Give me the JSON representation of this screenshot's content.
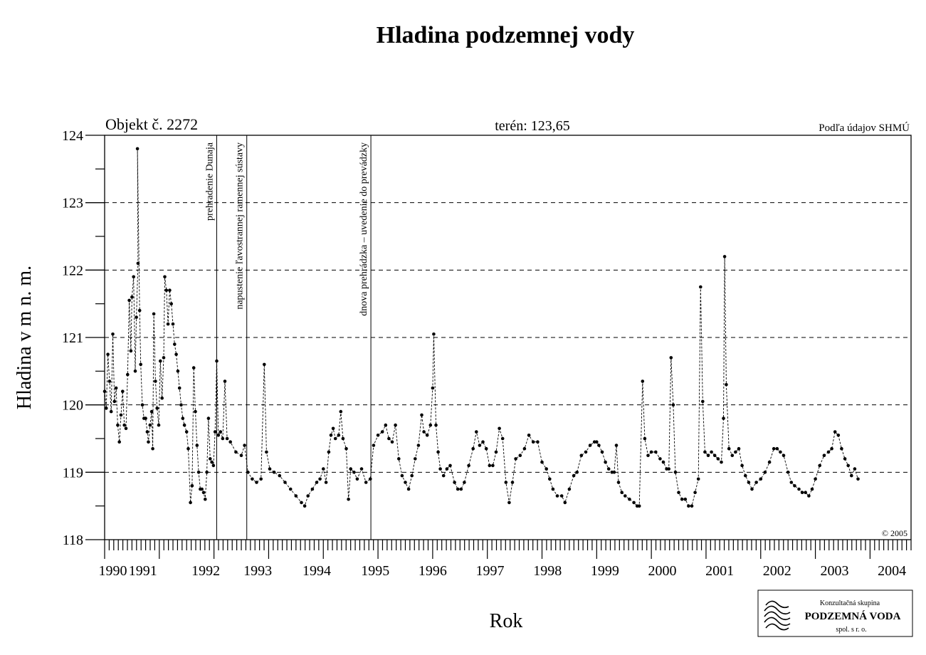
{
  "chart_data": {
    "type": "line",
    "title": "Hladina podzemnej vody",
    "object_label": "Objekt č. 2272",
    "terrain_label": "terén: 123,65",
    "source_label": "Podľa údajov SHMÚ",
    "copyright": "© 2005",
    "xlabel": "Rok",
    "ylabel": "Hladina v m n. m.",
    "xlim": [
      1990.0,
      2004.75
    ],
    "ylim": [
      118,
      124
    ],
    "y_ticks": [
      118,
      119,
      120,
      121,
      122,
      123,
      124
    ],
    "x_tick_labels": [
      {
        "label": "1990",
        "x": 1990.15
      },
      {
        "label": "1991",
        "x": 1990.7
      },
      {
        "label": "1992",
        "x": 1991.85
      },
      {
        "label": "1993",
        "x": 1992.8
      },
      {
        "label": "1994",
        "x": 1993.88
      },
      {
        "label": "1995",
        "x": 1994.95
      },
      {
        "label": "1996",
        "x": 1996.0
      },
      {
        "label": "1997",
        "x": 1997.05
      },
      {
        "label": "1998",
        "x": 1998.1
      },
      {
        "label": "1999",
        "x": 1999.15
      },
      {
        "label": "2000",
        "x": 2000.2
      },
      {
        "label": "2001",
        "x": 2001.25
      },
      {
        "label": "2002",
        "x": 2002.3
      },
      {
        "label": "2003",
        "x": 2003.35
      },
      {
        "label": "2004",
        "x": 2004.4
      }
    ],
    "grid": "horizontal dashed",
    "line_color": "#000000",
    "events": [
      {
        "label": "prehradenie Dunaja",
        "x": 1992.05
      },
      {
        "label": "napustenie ľavostrannej ramennej sústavy",
        "x": 1992.6
      },
      {
        "label": "dnova prehrádzka – uvedenie do prevádzky",
        "x": 1994.87
      }
    ],
    "series": [
      {
        "points": [
          [
            1990.0,
            120.2
          ],
          [
            1990.03,
            119.95
          ],
          [
            1990.06,
            120.75
          ],
          [
            1990.09,
            120.35
          ],
          [
            1990.12,
            119.9
          ],
          [
            1990.15,
            121.05
          ],
          [
            1990.18,
            120.05
          ],
          [
            1990.21,
            120.25
          ],
          [
            1990.24,
            119.7
          ],
          [
            1990.27,
            119.45
          ],
          [
            1990.3,
            119.85
          ],
          [
            1990.33,
            120.2
          ],
          [
            1990.36,
            119.7
          ],
          [
            1990.39,
            119.65
          ],
          [
            1990.42,
            120.45
          ],
          [
            1990.45,
            121.55
          ],
          [
            1990.48,
            120.8
          ],
          [
            1990.5,
            121.6
          ],
          [
            1990.53,
            121.9
          ],
          [
            1990.56,
            120.5
          ],
          [
            1990.58,
            121.3
          ],
          [
            1990.61,
            122.1
          ],
          [
            1990.6,
            123.8
          ],
          [
            1990.64,
            121.4
          ],
          [
            1990.66,
            120.6
          ],
          [
            1990.69,
            120.0
          ],
          [
            1990.72,
            119.8
          ],
          [
            1990.75,
            119.8
          ],
          [
            1990.78,
            119.6
          ],
          [
            1990.8,
            119.45
          ],
          [
            1990.83,
            119.7
          ],
          [
            1990.86,
            119.9
          ],
          [
            1990.88,
            119.35
          ],
          [
            1990.9,
            121.35
          ],
          [
            1990.93,
            120.35
          ],
          [
            1990.96,
            119.95
          ],
          [
            1990.99,
            119.7
          ],
          [
            1991.02,
            120.65
          ],
          [
            1991.05,
            120.1
          ],
          [
            1991.08,
            120.7
          ],
          [
            1991.1,
            121.9
          ],
          [
            1991.13,
            121.7
          ],
          [
            1991.16,
            121.2
          ],
          [
            1991.19,
            121.7
          ],
          [
            1991.22,
            121.5
          ],
          [
            1991.25,
            121.2
          ],
          [
            1991.28,
            120.9
          ],
          [
            1991.31,
            120.75
          ],
          [
            1991.34,
            120.5
          ],
          [
            1991.37,
            120.25
          ],
          [
            1991.4,
            120.0
          ],
          [
            1991.43,
            119.8
          ],
          [
            1991.46,
            119.7
          ],
          [
            1991.5,
            119.6
          ],
          [
            1991.53,
            119.35
          ],
          [
            1991.57,
            118.55
          ],
          [
            1991.6,
            118.8
          ],
          [
            1991.63,
            120.55
          ],
          [
            1991.66,
            119.9
          ],
          [
            1991.69,
            119.4
          ],
          [
            1991.72,
            119.0
          ],
          [
            1991.75,
            118.75
          ],
          [
            1991.78,
            118.75
          ],
          [
            1991.81,
            118.7
          ],
          [
            1991.84,
            118.6
          ],
          [
            1991.87,
            119.0
          ],
          [
            1991.9,
            119.8
          ],
          [
            1991.93,
            119.2
          ],
          [
            1991.96,
            119.15
          ],
          [
            1991.99,
            119.1
          ],
          [
            1992.02,
            119.6
          ],
          [
            1992.05,
            120.65
          ],
          [
            1992.08,
            119.55
          ],
          [
            1992.12,
            119.6
          ],
          [
            1992.16,
            119.5
          ],
          [
            1992.2,
            120.35
          ],
          [
            1992.24,
            119.5
          ],
          [
            1992.3,
            119.45
          ],
          [
            1992.4,
            119.3
          ],
          [
            1992.5,
            119.25
          ],
          [
            1992.56,
            119.4
          ],
          [
            1992.62,
            119.0
          ],
          [
            1992.7,
            118.9
          ],
          [
            1992.78,
            118.85
          ],
          [
            1992.86,
            118.9
          ],
          [
            1992.92,
            120.6
          ],
          [
            1992.96,
            119.3
          ],
          [
            1993.02,
            119.05
          ],
          [
            1993.1,
            119.0
          ],
          [
            1993.2,
            118.95
          ],
          [
            1993.3,
            118.85
          ],
          [
            1993.4,
            118.75
          ],
          [
            1993.5,
            118.65
          ],
          [
            1993.6,
            118.55
          ],
          [
            1993.66,
            118.5
          ],
          [
            1993.72,
            118.65
          ],
          [
            1993.8,
            118.75
          ],
          [
            1993.88,
            118.85
          ],
          [
            1993.94,
            118.9
          ],
          [
            1994.0,
            119.05
          ],
          [
            1994.05,
            118.85
          ],
          [
            1994.1,
            119.3
          ],
          [
            1994.14,
            119.55
          ],
          [
            1994.18,
            119.65
          ],
          [
            1994.22,
            119.5
          ],
          [
            1994.28,
            119.55
          ],
          [
            1994.32,
            119.9
          ],
          [
            1994.36,
            119.5
          ],
          [
            1994.42,
            119.35
          ],
          [
            1994.46,
            118.6
          ],
          [
            1994.5,
            119.05
          ],
          [
            1994.56,
            119.0
          ],
          [
            1994.62,
            118.9
          ],
          [
            1994.7,
            119.05
          ],
          [
            1994.78,
            118.85
          ],
          [
            1994.86,
            118.9
          ],
          [
            1994.92,
            119.4
          ],
          [
            1995.0,
            119.55
          ],
          [
            1995.08,
            119.6
          ],
          [
            1995.14,
            119.7
          ],
          [
            1995.2,
            119.5
          ],
          [
            1995.26,
            119.45
          ],
          [
            1995.32,
            119.7
          ],
          [
            1995.38,
            119.2
          ],
          [
            1995.44,
            118.95
          ],
          [
            1995.5,
            118.85
          ],
          [
            1995.56,
            118.75
          ],
          [
            1995.62,
            118.95
          ],
          [
            1995.68,
            119.2
          ],
          [
            1995.74,
            119.4
          ],
          [
            1995.8,
            119.85
          ],
          [
            1995.84,
            119.6
          ],
          [
            1995.9,
            119.55
          ],
          [
            1995.96,
            119.7
          ],
          [
            1996.0,
            120.25
          ],
          [
            1996.02,
            121.05
          ],
          [
            1996.06,
            119.7
          ],
          [
            1996.1,
            119.3
          ],
          [
            1996.14,
            119.05
          ],
          [
            1996.2,
            118.95
          ],
          [
            1996.26,
            119.05
          ],
          [
            1996.32,
            119.1
          ],
          [
            1996.4,
            118.85
          ],
          [
            1996.46,
            118.75
          ],
          [
            1996.52,
            118.75
          ],
          [
            1996.58,
            118.85
          ],
          [
            1996.66,
            119.1
          ],
          [
            1996.74,
            119.35
          ],
          [
            1996.8,
            119.6
          ],
          [
            1996.86,
            119.4
          ],
          [
            1996.92,
            119.45
          ],
          [
            1996.98,
            119.35
          ],
          [
            1997.04,
            119.1
          ],
          [
            1997.1,
            119.1
          ],
          [
            1997.16,
            119.3
          ],
          [
            1997.22,
            119.65
          ],
          [
            1997.28,
            119.5
          ],
          [
            1997.34,
            118.85
          ],
          [
            1997.4,
            118.55
          ],
          [
            1997.46,
            118.85
          ],
          [
            1997.52,
            119.2
          ],
          [
            1997.6,
            119.25
          ],
          [
            1997.68,
            119.35
          ],
          [
            1997.76,
            119.55
          ],
          [
            1997.84,
            119.45
          ],
          [
            1997.92,
            119.45
          ],
          [
            1998.0,
            119.15
          ],
          [
            1998.08,
            119.05
          ],
          [
            1998.14,
            118.9
          ],
          [
            1998.2,
            118.75
          ],
          [
            1998.28,
            118.65
          ],
          [
            1998.36,
            118.65
          ],
          [
            1998.42,
            118.55
          ],
          [
            1998.5,
            118.75
          ],
          [
            1998.58,
            118.95
          ],
          [
            1998.64,
            119.0
          ],
          [
            1998.72,
            119.25
          ],
          [
            1998.8,
            119.3
          ],
          [
            1998.88,
            119.4
          ],
          [
            1998.96,
            119.45
          ],
          [
            1999.0,
            119.45
          ],
          [
            1999.04,
            119.4
          ],
          [
            1999.1,
            119.3
          ],
          [
            1999.16,
            119.15
          ],
          [
            1999.22,
            119.05
          ],
          [
            1999.28,
            119.0
          ],
          [
            1999.32,
            119.0
          ],
          [
            1999.36,
            119.4
          ],
          [
            1999.4,
            118.85
          ],
          [
            1999.46,
            118.7
          ],
          [
            1999.52,
            118.65
          ],
          [
            1999.6,
            118.6
          ],
          [
            1999.68,
            118.55
          ],
          [
            1999.74,
            118.5
          ],
          [
            1999.78,
            118.5
          ],
          [
            1999.84,
            120.35
          ],
          [
            1999.88,
            119.5
          ],
          [
            1999.94,
            119.25
          ],
          [
            2000.0,
            119.3
          ],
          [
            2000.08,
            119.3
          ],
          [
            2000.16,
            119.2
          ],
          [
            2000.22,
            119.15
          ],
          [
            2000.28,
            119.05
          ],
          [
            2000.32,
            119.05
          ],
          [
            2000.36,
            120.7
          ],
          [
            2000.4,
            120.0
          ],
          [
            2000.44,
            119.0
          ],
          [
            2000.5,
            118.7
          ],
          [
            2000.56,
            118.6
          ],
          [
            2000.62,
            118.6
          ],
          [
            2000.68,
            118.5
          ],
          [
            2000.74,
            118.5
          ],
          [
            2000.8,
            118.7
          ],
          [
            2000.86,
            118.9
          ],
          [
            2000.9,
            121.75
          ],
          [
            2000.94,
            120.05
          ],
          [
            2000.98,
            119.3
          ],
          [
            2001.04,
            119.25
          ],
          [
            2001.1,
            119.3
          ],
          [
            2001.16,
            119.25
          ],
          [
            2001.22,
            119.2
          ],
          [
            2001.28,
            119.15
          ],
          [
            2001.32,
            119.8
          ],
          [
            2001.34,
            122.2
          ],
          [
            2001.37,
            120.3
          ],
          [
            2001.42,
            119.35
          ],
          [
            2001.48,
            119.25
          ],
          [
            2001.54,
            119.3
          ],
          [
            2001.6,
            119.35
          ],
          [
            2001.66,
            119.1
          ],
          [
            2001.72,
            118.95
          ],
          [
            2001.78,
            118.85
          ],
          [
            2001.84,
            118.75
          ],
          [
            2001.92,
            118.85
          ],
          [
            2002.0,
            118.9
          ],
          [
            2002.08,
            119.0
          ],
          [
            2002.16,
            119.15
          ],
          [
            2002.24,
            119.35
          ],
          [
            2002.3,
            119.35
          ],
          [
            2002.36,
            119.3
          ],
          [
            2002.42,
            119.25
          ],
          [
            2002.5,
            119.0
          ],
          [
            2002.56,
            118.85
          ],
          [
            2002.62,
            118.8
          ],
          [
            2002.7,
            118.75
          ],
          [
            2002.76,
            118.7
          ],
          [
            2002.82,
            118.7
          ],
          [
            2002.88,
            118.65
          ],
          [
            2002.94,
            118.75
          ],
          [
            2003.0,
            118.9
          ],
          [
            2003.08,
            119.1
          ],
          [
            2003.16,
            119.25
          ],
          [
            2003.24,
            119.3
          ],
          [
            2003.3,
            119.35
          ],
          [
            2003.36,
            119.6
          ],
          [
            2003.42,
            119.55
          ],
          [
            2003.48,
            119.35
          ],
          [
            2003.54,
            119.2
          ],
          [
            2003.6,
            119.1
          ],
          [
            2003.66,
            118.95
          ],
          [
            2003.72,
            119.05
          ],
          [
            2003.78,
            118.9
          ]
        ]
      }
    ]
  },
  "logo": {
    "line1": "Konzultačná skupina",
    "line2": "PODZEMNÁ VODA",
    "line3": "spol. s r. o."
  }
}
